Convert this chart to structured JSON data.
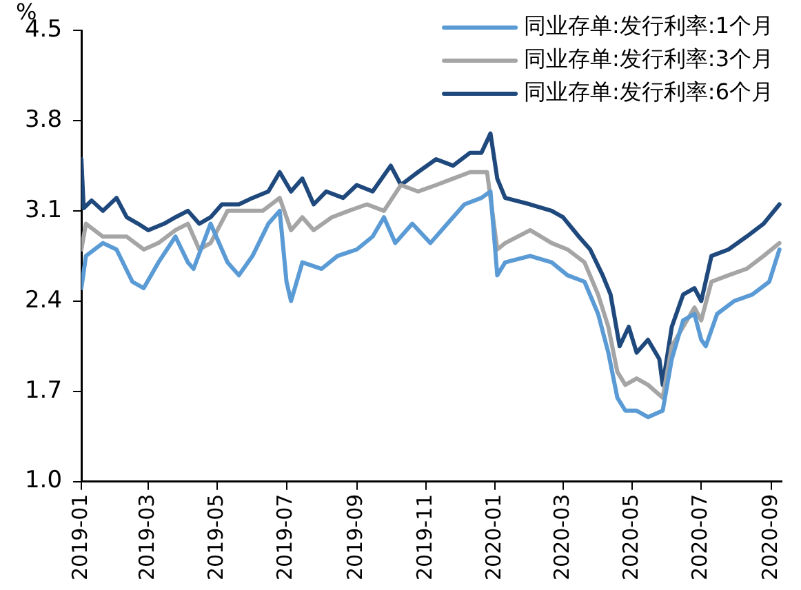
{
  "chart_data": {
    "type": "line",
    "ylabel": "%",
    "legend": "top right",
    "grid": false,
    "marker": "none",
    "line_style": "solid",
    "xlim": [
      "2019-01-01",
      "2020-09-10"
    ],
    "xticks": [
      "2019-01",
      "2019-03",
      "2019-05",
      "2019-07",
      "2019-09",
      "2019-11",
      "2020-01",
      "2020-03",
      "2020-05",
      "2020-07",
      "2020-09"
    ],
    "ylim": [
      1.0,
      4.5
    ],
    "yticks": [
      {
        "value": 1.0,
        "label": "1.0"
      },
      1.7,
      2.4,
      3.1,
      3.8,
      4.5
    ],
    "series": [
      {
        "name": "同业存单:发行利率:1个月",
        "color": "#5b9bd5",
        "x": [
          "2019-01-01",
          "2019-01-05",
          "2019-01-20",
          "2019-02-01",
          "2019-02-15",
          "2019-02-25",
          "2019-03-10",
          "2019-03-25",
          "2019-04-05",
          "2019-04-10",
          "2019-04-25",
          "2019-05-10",
          "2019-05-20",
          "2019-06-01",
          "2019-06-15",
          "2019-06-25",
          "2019-07-01",
          "2019-07-05",
          "2019-07-15",
          "2019-08-01",
          "2019-08-15",
          "2019-09-01",
          "2019-09-15",
          "2019-09-25",
          "2019-10-05",
          "2019-10-20",
          "2019-11-05",
          "2019-11-20",
          "2019-12-05",
          "2019-12-20",
          "2019-12-28",
          "2020-01-03",
          "2020-01-10",
          "2020-02-01",
          "2020-02-20",
          "2020-03-05",
          "2020-03-20",
          "2020-04-01",
          "2020-04-10",
          "2020-04-18",
          "2020-04-25",
          "2020-05-05",
          "2020-05-15",
          "2020-05-28",
          "2020-06-05",
          "2020-06-15",
          "2020-06-25",
          "2020-07-01",
          "2020-07-05",
          "2020-07-15",
          "2020-07-30",
          "2020-08-15",
          "2020-08-30",
          "2020-09-08"
        ],
        "values": [
          2.5,
          2.75,
          2.85,
          2.8,
          2.55,
          2.5,
          2.7,
          2.9,
          2.7,
          2.65,
          3.0,
          2.7,
          2.6,
          2.75,
          3.0,
          3.1,
          2.55,
          2.4,
          2.7,
          2.65,
          2.75,
          2.8,
          2.9,
          3.05,
          2.85,
          3.0,
          2.85,
          3.0,
          3.15,
          3.2,
          3.25,
          2.6,
          2.7,
          2.75,
          2.7,
          2.6,
          2.55,
          2.3,
          2.0,
          1.65,
          1.55,
          1.55,
          1.5,
          1.55,
          1.95,
          2.25,
          2.3,
          2.1,
          2.05,
          2.3,
          2.4,
          2.45,
          2.55,
          2.8
        ]
      },
      {
        "name": "同业存单:发行利率:3个月",
        "color": "#a5a5a5",
        "x": [
          "2019-01-01",
          "2019-01-05",
          "2019-01-20",
          "2019-02-10",
          "2019-02-25",
          "2019-03-10",
          "2019-03-25",
          "2019-04-05",
          "2019-04-15",
          "2019-04-25",
          "2019-05-10",
          "2019-05-25",
          "2019-06-10",
          "2019-06-25",
          "2019-07-05",
          "2019-07-15",
          "2019-07-25",
          "2019-08-10",
          "2019-08-25",
          "2019-09-10",
          "2019-09-25",
          "2019-10-10",
          "2019-10-25",
          "2019-11-10",
          "2019-11-25",
          "2019-12-10",
          "2019-12-25",
          "2020-01-03",
          "2020-01-10",
          "2020-02-01",
          "2020-02-20",
          "2020-03-05",
          "2020-03-20",
          "2020-04-01",
          "2020-04-10",
          "2020-04-18",
          "2020-04-25",
          "2020-05-05",
          "2020-05-15",
          "2020-05-28",
          "2020-06-05",
          "2020-06-15",
          "2020-06-25",
          "2020-07-01",
          "2020-07-10",
          "2020-07-25",
          "2020-08-10",
          "2020-08-25",
          "2020-09-08"
        ],
        "values": [
          2.8,
          3.0,
          2.9,
          2.9,
          2.8,
          2.85,
          2.95,
          3.0,
          2.8,
          2.85,
          3.1,
          3.1,
          3.1,
          3.2,
          2.95,
          3.05,
          2.95,
          3.05,
          3.1,
          3.15,
          3.1,
          3.3,
          3.25,
          3.3,
          3.35,
          3.4,
          3.4,
          2.8,
          2.85,
          2.95,
          2.85,
          2.8,
          2.7,
          2.45,
          2.2,
          1.85,
          1.75,
          1.8,
          1.75,
          1.65,
          2.05,
          2.2,
          2.35,
          2.25,
          2.55,
          2.6,
          2.65,
          2.75,
          2.85
        ]
      },
      {
        "name": "同业存单:发行利率:6个月",
        "color": "#1f497d",
        "x": [
          "2019-01-01",
          "2019-01-03",
          "2019-01-10",
          "2019-01-20",
          "2019-02-01",
          "2019-02-10",
          "2019-02-20",
          "2019-03-01",
          "2019-03-15",
          "2019-03-25",
          "2019-04-05",
          "2019-04-15",
          "2019-04-25",
          "2019-05-05",
          "2019-05-20",
          "2019-06-01",
          "2019-06-15",
          "2019-06-25",
          "2019-07-05",
          "2019-07-15",
          "2019-07-25",
          "2019-08-05",
          "2019-08-20",
          "2019-09-01",
          "2019-09-15",
          "2019-10-01",
          "2019-10-10",
          "2019-10-25",
          "2019-11-10",
          "2019-11-25",
          "2019-12-10",
          "2019-12-20",
          "2019-12-28",
          "2020-01-03",
          "2020-01-10",
          "2020-02-01",
          "2020-02-20",
          "2020-03-01",
          "2020-03-15",
          "2020-03-25",
          "2020-04-05",
          "2020-04-12",
          "2020-04-20",
          "2020-04-28",
          "2020-05-05",
          "2020-05-15",
          "2020-05-25",
          "2020-05-28",
          "2020-06-05",
          "2020-06-15",
          "2020-06-25",
          "2020-07-01",
          "2020-07-10",
          "2020-07-25",
          "2020-08-10",
          "2020-08-25",
          "2020-09-08"
        ],
        "values": [
          3.5,
          3.12,
          3.18,
          3.1,
          3.2,
          3.05,
          3.0,
          2.95,
          3.0,
          3.05,
          3.1,
          3.0,
          3.05,
          3.15,
          3.15,
          3.2,
          3.25,
          3.4,
          3.25,
          3.35,
          3.15,
          3.25,
          3.2,
          3.3,
          3.25,
          3.45,
          3.3,
          3.4,
          3.5,
          3.45,
          3.55,
          3.55,
          3.7,
          3.35,
          3.2,
          3.15,
          3.1,
          3.05,
          2.9,
          2.8,
          2.6,
          2.45,
          2.05,
          2.2,
          2.0,
          2.1,
          1.95,
          1.75,
          2.2,
          2.45,
          2.5,
          2.4,
          2.75,
          2.8,
          2.9,
          3.0,
          3.15
        ]
      }
    ]
  }
}
